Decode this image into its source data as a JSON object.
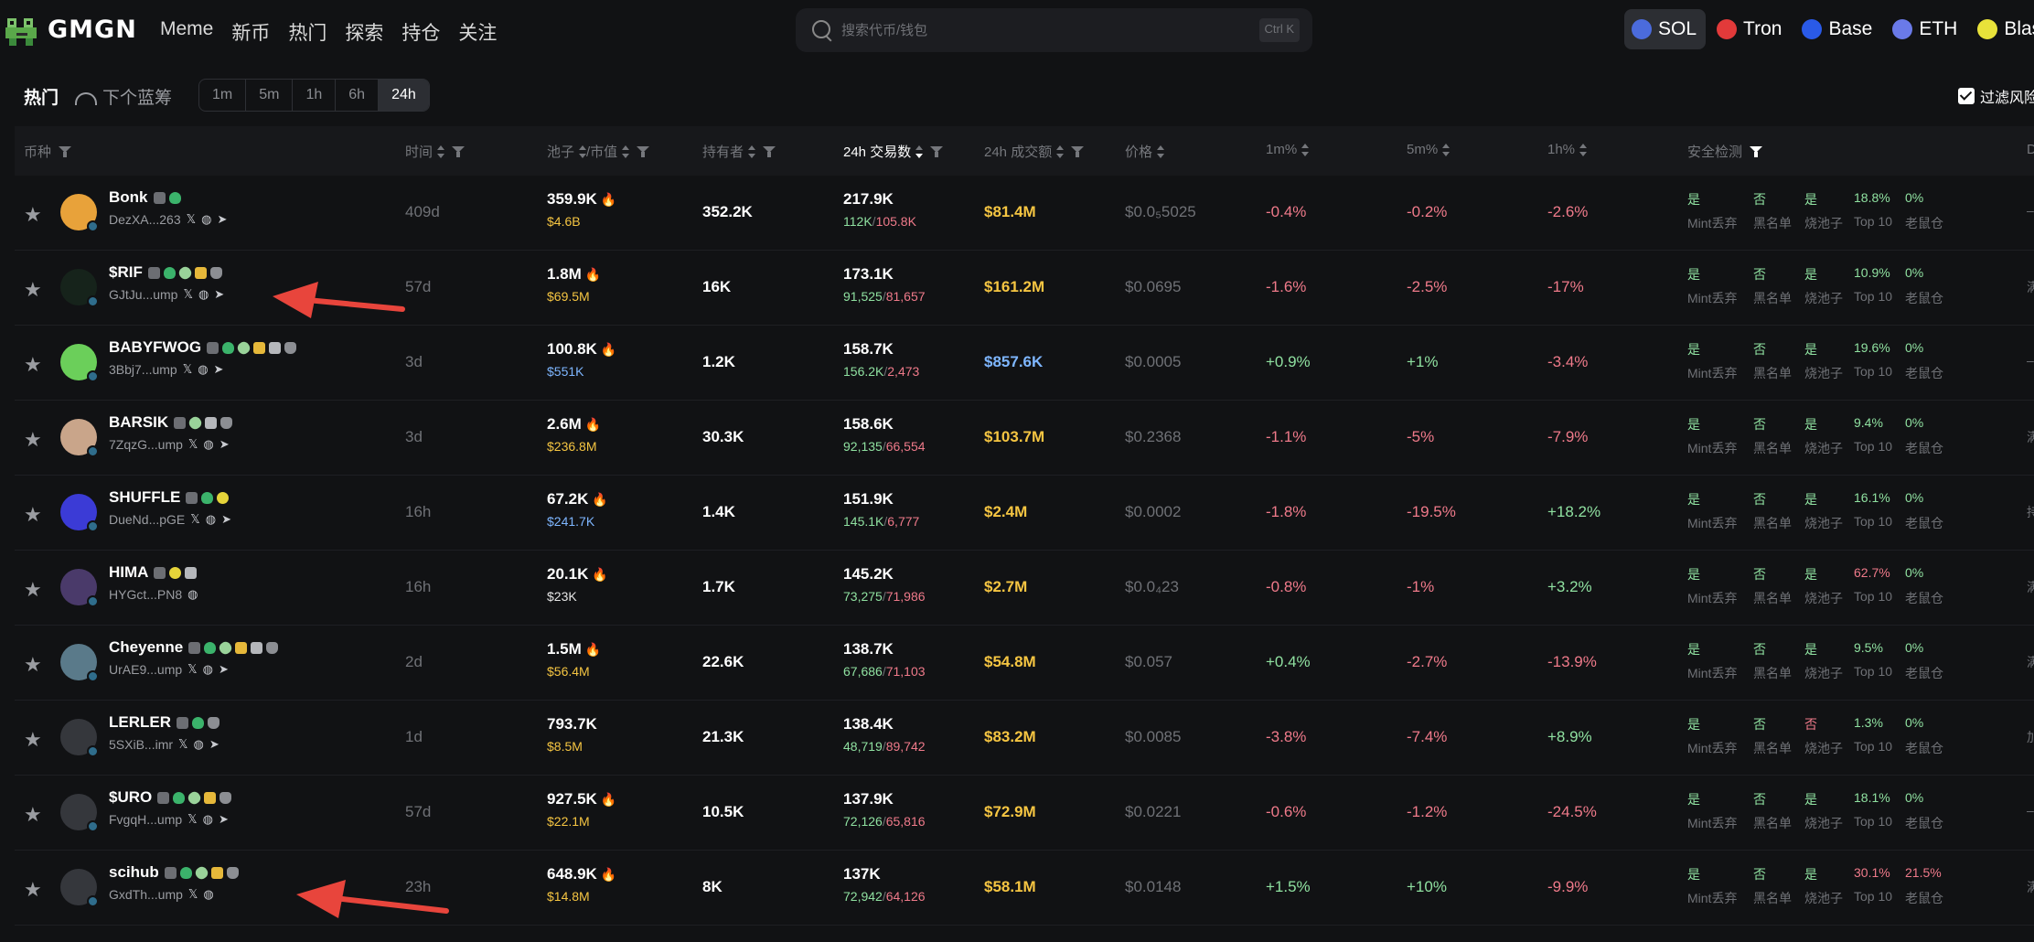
{
  "brand": {
    "name": "GMGN"
  },
  "nav": [
    "Meme",
    "新币",
    "热门",
    "探索",
    "持仓",
    "关注"
  ],
  "search": {
    "placeholder": "搜索代币/钱包",
    "shortcut": "Ctrl K"
  },
  "chains": [
    {
      "name": "SOL",
      "color": "#4b6bdc",
      "active": true
    },
    {
      "name": "Tron",
      "color": "#e23a3a",
      "active": false
    },
    {
      "name": "Base",
      "color": "#2a5ae8",
      "active": false
    },
    {
      "name": "ETH",
      "color": "#6a7ae8",
      "active": false
    },
    {
      "name": "Blas",
      "color": "#e8e23a",
      "active": false
    }
  ],
  "filterbar": {
    "hot": "热门",
    "next": "下个蓝筹",
    "timeframes": [
      "1m",
      "5m",
      "1h",
      "6h",
      "24h"
    ],
    "selected": "24h",
    "risk_filter": "过滤风险"
  },
  "headers": {
    "token": "币种",
    "age": "时间",
    "liq": "池子",
    "mc": "/市值",
    "holders": "持有者",
    "tx24": "24h 交易数",
    "vol24": "24h 成交额",
    "price": "价格",
    "c1m": "1m%",
    "c5m": "5m%",
    "c1h": "1h%",
    "security": "安全检测",
    "edge": "D"
  },
  "security_labels": [
    "Mint丢弃",
    "黑名单",
    "烧池子",
    "Top 10",
    "老鼠仓"
  ],
  "rows": [
    {
      "name": "Bonk",
      "addr": "DezXA...263",
      "age": "409d",
      "liq": "359.9K",
      "mc": "$4.6B",
      "mc_color": "yellow",
      "holders": "352.2K",
      "tx": "217.9K",
      "buys": "112K",
      "sells": "105.8K",
      "vol": "$81.4M",
      "vol_color": "yellow",
      "price": "$0.0₅5025",
      "c1m": "-0.4%",
      "c5m": "-0.2%",
      "c1h": "-2.6%",
      "mint": "是",
      "black": "否",
      "burn": "是",
      "top10": "18.8%",
      "rat": "0%",
      "edge": "–"
    },
    {
      "name": "$RIF",
      "addr": "GJtJu...ump",
      "age": "57d",
      "liq": "1.8M",
      "mc": "$69.5M",
      "mc_color": "yellow",
      "holders": "16K",
      "tx": "173.1K",
      "buys": "91,525",
      "sells": "81,657",
      "vol": "$161.2M",
      "vol_color": "yellow",
      "price": "$0.0695",
      "c1m": "-1.6%",
      "c5m": "-2.5%",
      "c1h": "-17%",
      "mint": "是",
      "black": "否",
      "burn": "是",
      "top10": "10.9%",
      "rat": "0%",
      "edge": "满"
    },
    {
      "name": "BABYFWOG",
      "addr": "3Bbj7...ump",
      "age": "3d",
      "liq": "100.8K",
      "mc": "$551K",
      "mc_color": "blue",
      "holders": "1.2K",
      "tx": "158.7K",
      "buys": "156.2K",
      "sells": "2,473",
      "vol": "$857.6K",
      "vol_color": "blue",
      "price": "$0.0005",
      "c1m": "+0.9%",
      "c5m": "+1%",
      "c1h": "-3.4%",
      "mint": "是",
      "black": "否",
      "burn": "是",
      "top10": "19.6%",
      "rat": "0%",
      "edge": "–"
    },
    {
      "name": "BARSIK",
      "addr": "7ZqzG...ump",
      "age": "3d",
      "liq": "2.6M",
      "mc": "$236.8M",
      "mc_color": "yellow",
      "holders": "30.3K",
      "tx": "158.6K",
      "buys": "92,135",
      "sells": "66,554",
      "vol": "$103.7M",
      "vol_color": "yellow",
      "price": "$0.2368",
      "c1m": "-1.1%",
      "c5m": "-5%",
      "c1h": "-7.9%",
      "mint": "是",
      "black": "否",
      "burn": "是",
      "top10": "9.4%",
      "rat": "0%",
      "edge": "满"
    },
    {
      "name": "SHUFFLE",
      "addr": "DueNd...pGE",
      "age": "16h",
      "liq": "67.2K",
      "mc": "$241.7K",
      "mc_color": "blue",
      "holders": "1.4K",
      "tx": "151.9K",
      "buys": "145.1K",
      "sells": "6,777",
      "vol": "$2.4M",
      "vol_color": "yellow",
      "price": "$0.0002",
      "c1m": "-1.8%",
      "c5m": "-19.5%",
      "c1h": "+18.2%",
      "mint": "是",
      "black": "否",
      "burn": "是",
      "top10": "16.1%",
      "rat": "0%",
      "edge": "持"
    },
    {
      "name": "HIMA",
      "addr": "HYGct...PN8",
      "age": "16h",
      "liq": "20.1K",
      "mc": "$23K",
      "mc_color": "white",
      "holders": "1.7K",
      "tx": "145.2K",
      "buys": "73,275",
      "sells": "71,986",
      "vol": "$2.7M",
      "vol_color": "yellow",
      "price": "$0.0₄23",
      "c1m": "-0.8%",
      "c5m": "-1%",
      "c1h": "+3.2%",
      "mint": "是",
      "black": "否",
      "burn": "是",
      "top10": "62.7%",
      "top10_red": true,
      "rat": "0%",
      "edge": "满"
    },
    {
      "name": "Cheyenne",
      "addr": "UrAE9...ump",
      "age": "2d",
      "liq": "1.5M",
      "mc": "$56.4M",
      "mc_color": "yellow",
      "holders": "22.6K",
      "tx": "138.7K",
      "buys": "67,686",
      "sells": "71,103",
      "vol": "$54.8M",
      "vol_color": "yellow",
      "price": "$0.057",
      "c1m": "+0.4%",
      "c5m": "-2.7%",
      "c1h": "-13.9%",
      "mint": "是",
      "black": "否",
      "burn": "是",
      "top10": "9.5%",
      "rat": "0%",
      "edge": "满"
    },
    {
      "name": "LERLER",
      "addr": "5SXiB...imr",
      "age": "1d",
      "liq": "793.7K",
      "mc": "$8.5M",
      "mc_color": "yellow",
      "holders": "21.3K",
      "tx": "138.4K",
      "buys": "48,719",
      "sells": "89,742",
      "vol": "$83.2M",
      "vol_color": "yellow",
      "price": "$0.0085",
      "c1m": "-3.8%",
      "c5m": "-7.4%",
      "c1h": "+8.9%",
      "mint": "是",
      "black": "否",
      "burn": "否",
      "burn_red": true,
      "top10": "1.3%",
      "rat": "0%",
      "edge": "加"
    },
    {
      "name": "$URO",
      "addr": "FvgqH...ump",
      "age": "57d",
      "liq": "927.5K",
      "mc": "$22.1M",
      "mc_color": "yellow",
      "holders": "10.5K",
      "tx": "137.9K",
      "buys": "72,126",
      "sells": "65,816",
      "vol": "$72.9M",
      "vol_color": "yellow",
      "price": "$0.0221",
      "c1m": "-0.6%",
      "c5m": "-1.2%",
      "c1h": "-24.5%",
      "mint": "是",
      "black": "否",
      "burn": "是",
      "top10": "18.1%",
      "rat": "0%",
      "edge": "–"
    },
    {
      "name": "scihub",
      "addr": "GxdTh...ump",
      "age": "23h",
      "liq": "648.9K",
      "mc": "$14.8M",
      "mc_color": "yellow",
      "holders": "8K",
      "tx": "137K",
      "buys": "72,942",
      "sells": "64,126",
      "vol": "$58.1M",
      "vol_color": "yellow",
      "price": "$0.0148",
      "c1m": "+1.5%",
      "c5m": "+10%",
      "c1h": "-9.9%",
      "mint": "是",
      "black": "否",
      "burn": "是",
      "top10": "30.1%",
      "top10_red": true,
      "rat": "21.5%",
      "rat_red": true,
      "edge": "满"
    }
  ]
}
